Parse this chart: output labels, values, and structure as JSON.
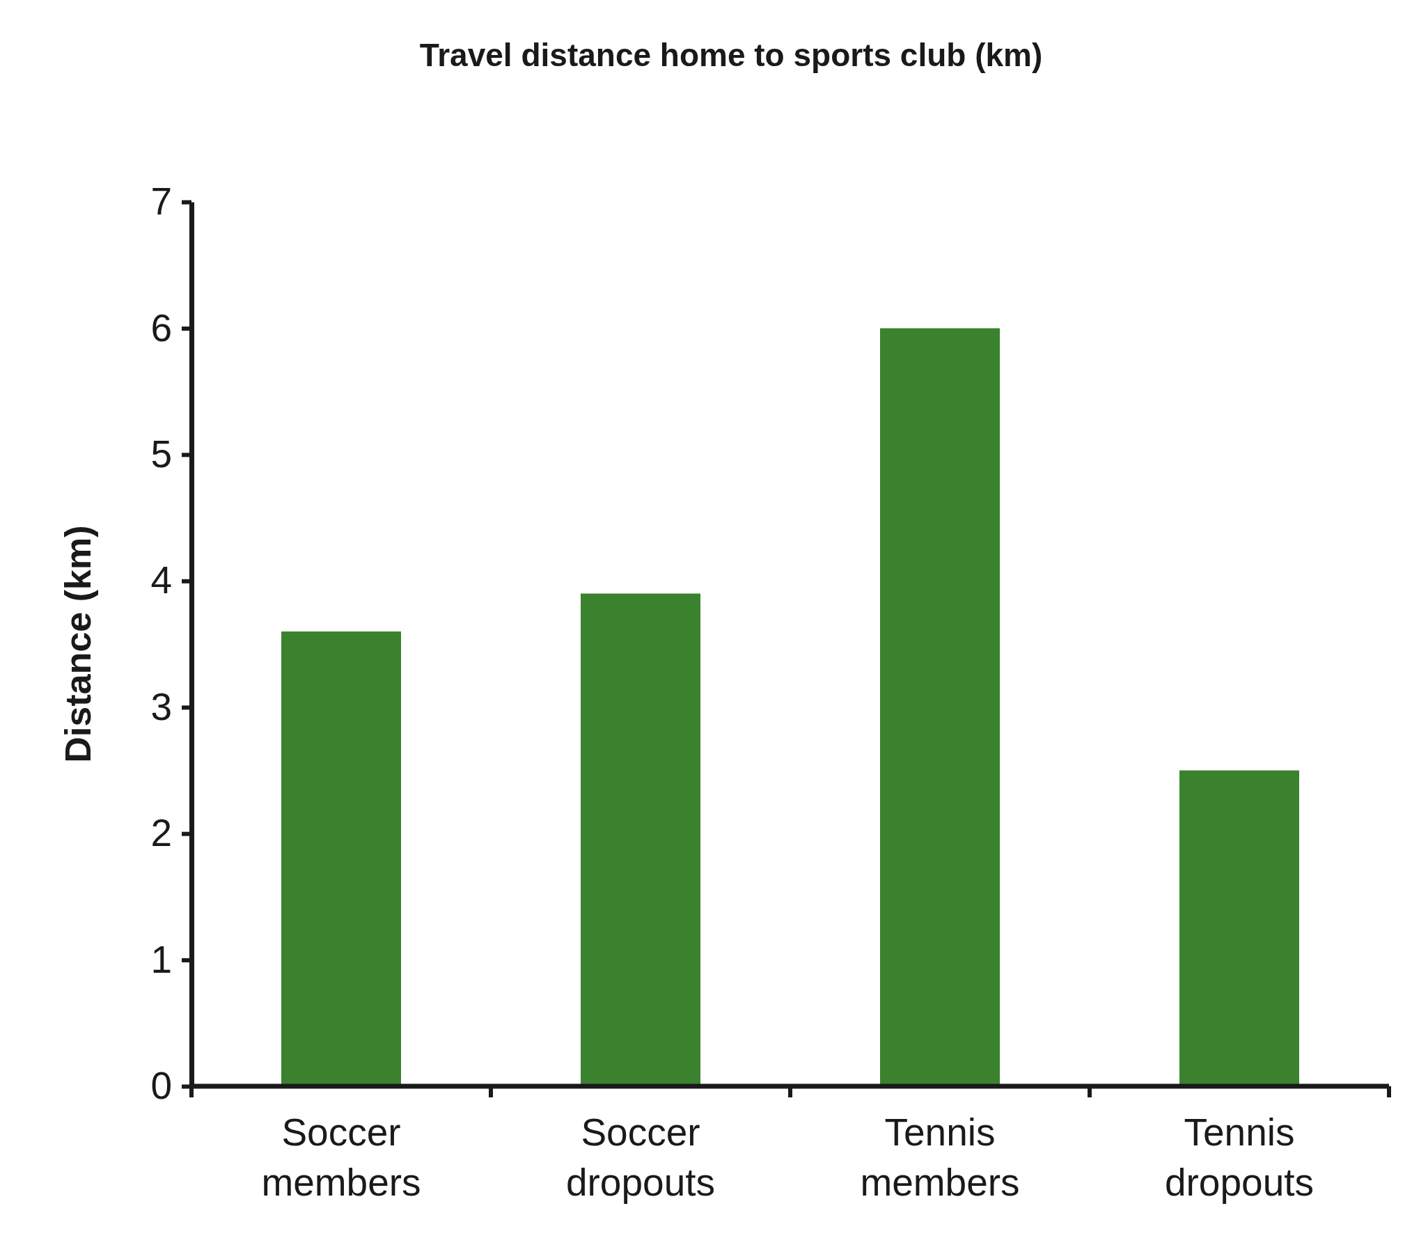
{
  "chart_data": {
    "type": "bar",
    "title": "Travel distance home to sports club (km)",
    "ylabel": "Distance (km)",
    "categories": [
      "Soccer members",
      "Soccer dropouts",
      "Tennis members",
      "Tennis dropouts"
    ],
    "values": [
      3.6,
      3.9,
      6,
      2.5
    ],
    "color": "#3a822e",
    "ylim": [
      0,
      7
    ],
    "yticks": [
      0,
      1,
      2,
      3,
      4,
      5,
      6,
      7
    ],
    "grid": false
  }
}
